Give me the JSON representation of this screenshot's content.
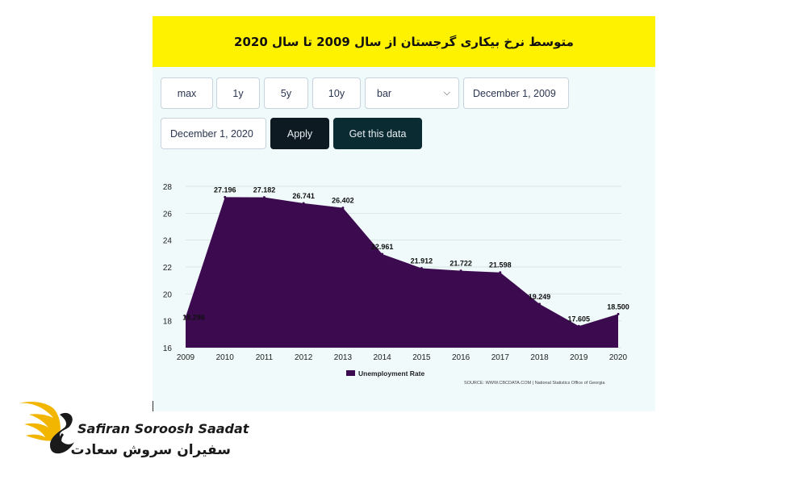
{
  "title": "متوسط نرخ بیکاری گرجستان از سال 2009 تا سال 2020",
  "controls": {
    "max": "max",
    "y1": "1y",
    "y5": "5y",
    "y10": "10y",
    "chart_type": "bar",
    "start_date": "December 1, 2009",
    "end_date": "December 1, 2020",
    "apply": "Apply",
    "get_data": "Get this data"
  },
  "colors": {
    "title_bg": "#fff200",
    "panel_bg": "#f0fafa",
    "series": "#3b0a4f",
    "apply_bg": "#0e1a22",
    "get_data_bg": "#0b2b33"
  },
  "chart_data": {
    "type": "area",
    "x": [
      2009,
      2010,
      2011,
      2012,
      2013,
      2014,
      2015,
      2016,
      2017,
      2018,
      2019,
      2020
    ],
    "series": [
      {
        "name": "Unemployment Rate",
        "values": [
          18.296,
          27.196,
          27.182,
          26.741,
          26.402,
          22.961,
          21.912,
          21.722,
          21.598,
          19.249,
          17.605,
          18.5
        ],
        "labels": [
          "18.296",
          "27.196",
          "27.182",
          "26.741",
          "26.402",
          "22.961",
          "21.912",
          "21.722",
          "21.598",
          "19.249",
          "17.605",
          "18.500"
        ]
      }
    ],
    "x_ticks": [
      "2009",
      "2010",
      "2011",
      "2012",
      "2013",
      "2014",
      "2015",
      "2016",
      "2017",
      "2018",
      "2019",
      "2020"
    ],
    "y_ticks": [
      "16",
      "18",
      "20",
      "22",
      "24",
      "26",
      "28"
    ],
    "ylim": [
      16,
      28
    ],
    "grid": true,
    "legend": "bottom-center",
    "source": "SOURCE: WWW.CBCDATA.COM | National Statistics Office of Georgia"
  },
  "brand": {
    "name_en": "Safiran Soroosh Saadat",
    "name_fa": "سفیران سروش سعادت"
  }
}
